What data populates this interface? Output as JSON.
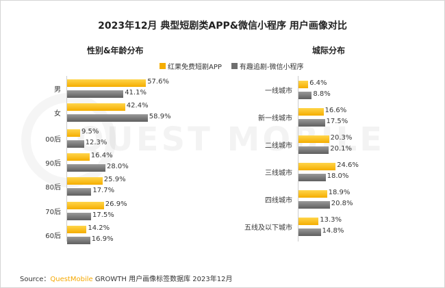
{
  "title": "2023年12月 典型短剧类APP&微信小程序 用户画像对比",
  "source": {
    "prefix": "Source：",
    "brand": "QuestMobile",
    "rest": " GROWTH 用户画像标签数据库 2023年12月"
  },
  "watermark": "QUEST MOBILE",
  "colors": {
    "series0": "#f5ad00",
    "series1": "#6e6e6e"
  },
  "chart_data": [
    {
      "type": "bar",
      "orientation": "horizontal",
      "title": "性别&年龄分布",
      "categories": [
        "男",
        "女",
        "00后",
        "90后",
        "80后",
        "70后",
        "60后"
      ],
      "series": [
        {
          "name": "红果免费短剧APP",
          "values": [
            57.6,
            42.4,
            9.5,
            16.4,
            25.9,
            26.9,
            14.2
          ],
          "labels": [
            "57.6%",
            "42.4%",
            "9.5%",
            "16.4%",
            "25.9%",
            "26.9%",
            "14.2%"
          ]
        },
        {
          "name": "有趣追剧-微信小程序",
          "values": [
            41.1,
            58.9,
            12.3,
            28.0,
            17.7,
            17.5,
            16.9
          ],
          "labels": [
            "41.1%",
            "58.9%",
            "12.3%",
            "28.0%",
            "17.7%",
            "17.5%",
            "16.9%"
          ]
        }
      ],
      "unit": "%",
      "legend": "top"
    },
    {
      "type": "bar",
      "orientation": "horizontal",
      "title": "城际分布",
      "categories": [
        "一线城市",
        "新一线城市",
        "二线城市",
        "三线城市",
        "四线城市",
        "五线及以下城市"
      ],
      "series": [
        {
          "name": "红果免费短剧APP",
          "values": [
            6.4,
            16.6,
            20.3,
            24.6,
            18.9,
            13.3
          ],
          "labels": [
            "6.4%",
            "16.6%",
            "20.3%",
            "24.6%",
            "18.9%",
            "13.3%"
          ]
        },
        {
          "name": "有趣追剧-微信小程序",
          "values": [
            8.8,
            17.5,
            20.1,
            18.0,
            20.8,
            14.8
          ],
          "labels": [
            "8.8%",
            "17.5%",
            "20.1%",
            "18.0%",
            "20.8%",
            "14.8%"
          ]
        }
      ],
      "unit": "%"
    }
  ]
}
